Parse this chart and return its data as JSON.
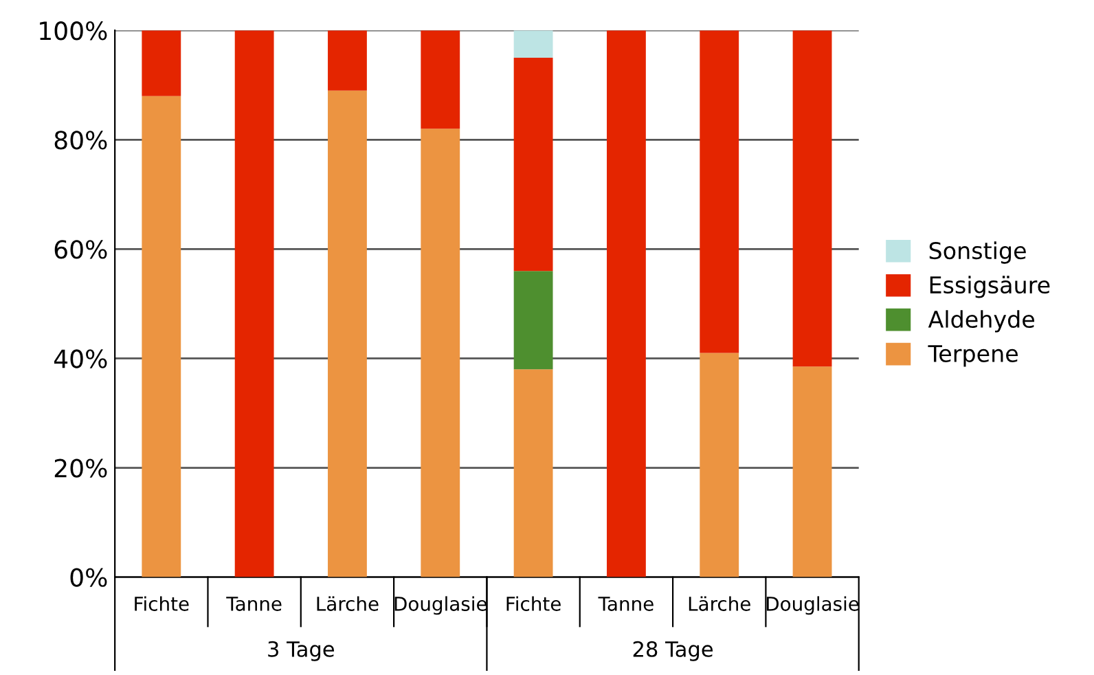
{
  "chart_data": {
    "type": "bar",
    "stacked": true,
    "categories": [
      "Fichte",
      "Tanne",
      "Lärche",
      "Douglasie",
      "Fichte",
      "Tanne",
      "Lärche",
      "Douglasie"
    ],
    "series": [
      {
        "name": "Terpene",
        "color": "#ec9441",
        "values": [
          88,
          0,
          89,
          82,
          38,
          0,
          41,
          38.5
        ]
      },
      {
        "name": "Aldehyde",
        "color": "#4e8f2f",
        "values": [
          0,
          0,
          0,
          0,
          18,
          0,
          0,
          0
        ]
      },
      {
        "name": "Essigsäure",
        "color": "#e42500",
        "values": [
          12,
          100,
          11,
          18,
          39,
          100,
          59,
          61.5
        ]
      },
      {
        "name": "Sonstige",
        "color": "#bde4e4",
        "values": [
          0,
          0,
          0,
          0,
          5,
          0,
          0,
          0
        ]
      }
    ],
    "annotations": [
      "3 Tage",
      "28 Tage"
    ],
    "ylim": [
      0,
      100
    ],
    "yticks": [
      {
        "value": 0,
        "label": "0%"
      },
      {
        "value": 20,
        "label": "20%"
      },
      {
        "value": 40,
        "label": "40%"
      },
      {
        "value": 60,
        "label": "60%"
      },
      {
        "value": 80,
        "label": "80%"
      },
      {
        "value": 100,
        "label": "100%"
      }
    ],
    "grid": "y",
    "legend": "right"
  }
}
